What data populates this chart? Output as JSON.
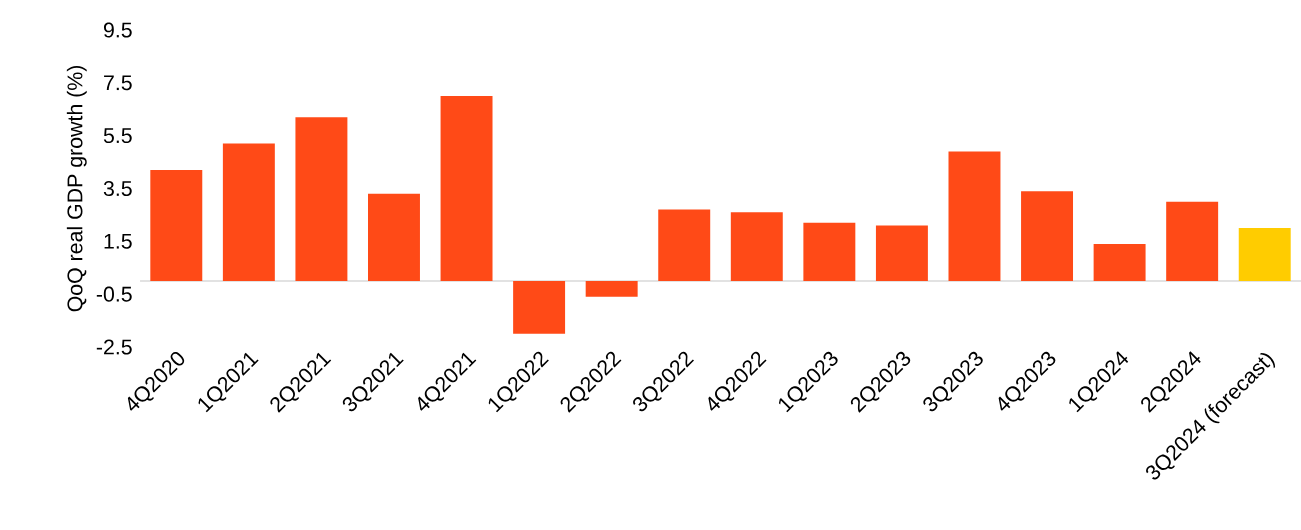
{
  "chart_data": {
    "type": "bar",
    "ylabel": "QoQ real GDP growth (%)",
    "categories": [
      "4Q2020",
      "1Q2021",
      "2Q2021",
      "3Q2021",
      "4Q2021",
      "1Q2022",
      "2Q2022",
      "3Q2022",
      "4Q2022",
      "1Q2023",
      "2Q2023",
      "3Q2023",
      "4Q2023",
      "1Q2024",
      "2Q2024",
      "3Q2024 (forecast)"
    ],
    "values": [
      4.2,
      5.2,
      6.2,
      3.3,
      7.0,
      -2.0,
      -0.6,
      2.7,
      2.6,
      2.2,
      2.1,
      4.9,
      3.4,
      1.4,
      3.0,
      2.0
    ],
    "colors": [
      "#ff4a17",
      "#ff4a17",
      "#ff4a17",
      "#ff4a17",
      "#ff4a17",
      "#ff4a17",
      "#ff4a17",
      "#ff4a17",
      "#ff4a17",
      "#ff4a17",
      "#ff4a17",
      "#ff4a17",
      "#ff4a17",
      "#ff4a17",
      "#ff4a17",
      "#ffcc00"
    ],
    "ylim": [
      -2.5,
      9.5
    ],
    "yticks": [
      -2.5,
      -0.5,
      1.5,
      3.5,
      5.5,
      7.5,
      9.5
    ],
    "grid": false
  }
}
